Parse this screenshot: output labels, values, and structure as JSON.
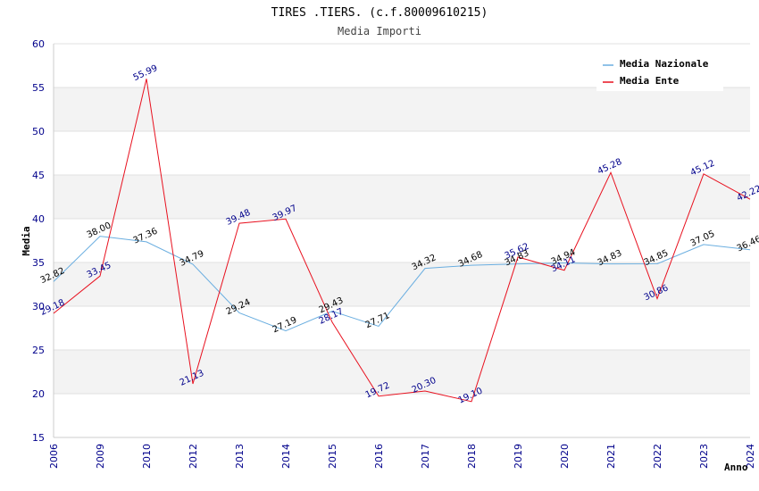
{
  "chart_data": {
    "type": "line",
    "title": "TIRES .TIERS. (c.f.80009610215)",
    "subtitle": "Media Importi",
    "xlabel": "Anno",
    "ylabel": "Media",
    "ylim": [
      15,
      60
    ],
    "yticks": [
      "15",
      "20",
      "25",
      "30",
      "35",
      "40",
      "45",
      "50",
      "55",
      "60"
    ],
    "categories": [
      "2006",
      "2009",
      "2010",
      "2012",
      "2013",
      "2014",
      "2015",
      "2016",
      "2017",
      "2018",
      "2019",
      "2020",
      "2021",
      "2022",
      "2023",
      "2024"
    ],
    "series": [
      {
        "name": "Media Nazionale",
        "color": "#6aaee0",
        "values": [
          32.82,
          38.0,
          37.36,
          34.79,
          29.24,
          27.19,
          29.43,
          27.71,
          34.32,
          34.68,
          34.83,
          34.94,
          34.83,
          34.85,
          37.05,
          36.46
        ],
        "labels": [
          "32.82",
          "38.00",
          "37.36",
          "34.79",
          "29.24",
          "27.19",
          "29.43",
          "27.71",
          "34.32",
          "34.68",
          "34.83",
          "34.94",
          "34.83",
          "34.85",
          "37.05",
          "36.46"
        ]
      },
      {
        "name": "Media Ente",
        "color": "#e8101e",
        "values": [
          29.18,
          33.45,
          55.99,
          21.13,
          39.48,
          39.97,
          28.17,
          19.72,
          20.3,
          19.1,
          35.62,
          34.11,
          45.28,
          30.86,
          45.12,
          42.22
        ],
        "labels": [
          "29.18",
          "33.45",
          "55.99",
          "21.13",
          "39.48",
          "39.97",
          "28.17",
          "19.72",
          "20.30",
          "19.10",
          "35.62",
          "34.11",
          "45.28",
          "30.86",
          "45.12",
          "42.22"
        ]
      }
    ],
    "legend_position": "top-right",
    "grid": true
  }
}
